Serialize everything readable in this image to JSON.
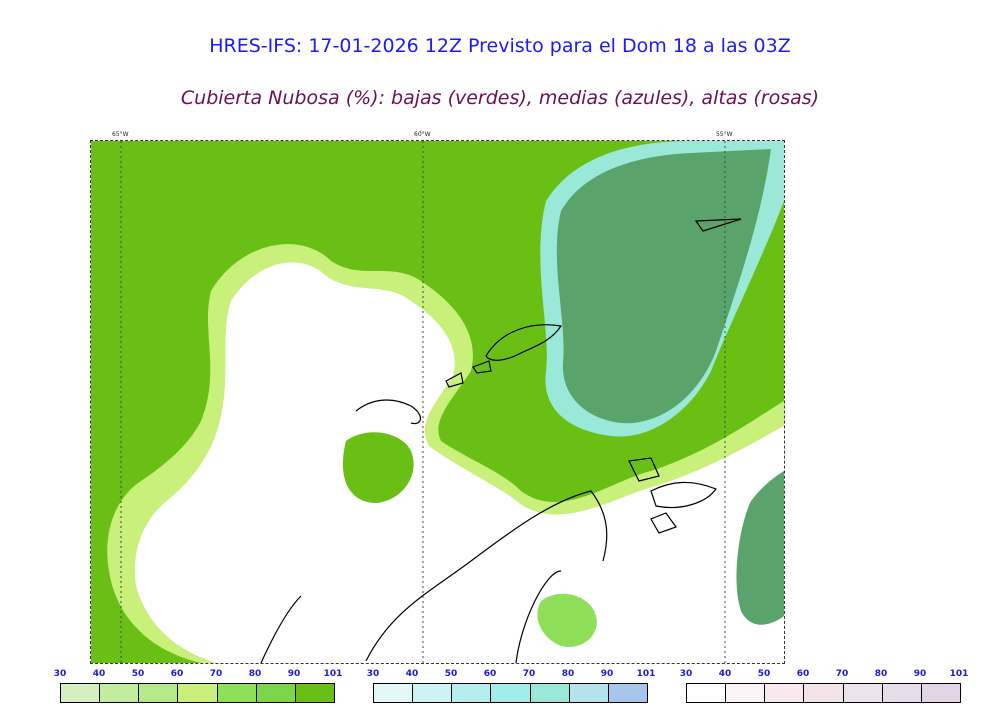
{
  "title": "HRES-IFS: 17-01-2026 12Z Previsto para el Dom 18 a las 03Z",
  "subtitle": "Cubierta Nubosa (%): bajas (verdes), medias (azules), altas (rosas)",
  "longitude_labels": [
    "65°W",
    "60°W",
    "55°W"
  ],
  "colors": {
    "title": "#1a1aff",
    "subtitle": "#6a0f55",
    "low_cloud_full": "#6abf15",
    "mid_cloud_full": "#5aa36a",
    "tick_labels": "#1a1ad0"
  },
  "legend": {
    "low": {
      "ticks": [
        "30",
        "40",
        "50",
        "60",
        "70",
        "80",
        "90",
        "101"
      ],
      "colors": [
        "#d4efc0",
        "#c2ec9e",
        "#b5ea8a",
        "#c9f07a",
        "#8ee05a",
        "#7dd64a",
        "#6abf15"
      ]
    },
    "mid": {
      "ticks": [
        "30",
        "40",
        "50",
        "60",
        "70",
        "80",
        "90",
        "101"
      ],
      "colors": [
        "#e3f8f8",
        "#cdf3f4",
        "#b6eef0",
        "#a2ecec",
        "#9ae8d8",
        "#b4e3ee",
        "#a8c5ee"
      ]
    },
    "high": {
      "ticks": [
        "30",
        "40",
        "50",
        "60",
        "70",
        "80",
        "90",
        "101"
      ],
      "colors": [
        "#ffffff",
        "#fbf3f6",
        "#f7e9ee",
        "#f3e4ea",
        "#ece3ec",
        "#e6dcea",
        "#e2d6e6"
      ]
    }
  }
}
